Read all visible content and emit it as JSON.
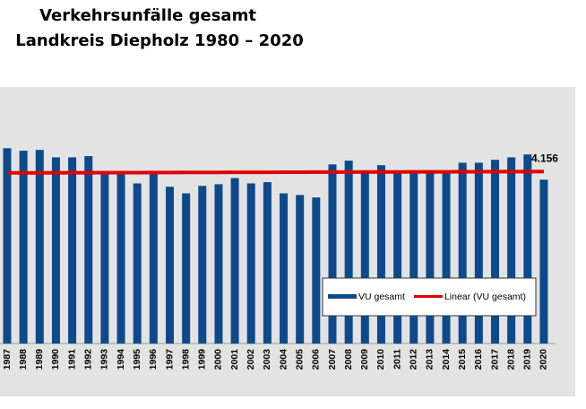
{
  "chart_data": {
    "type": "bar",
    "title": [
      "Verkehrsunfälle gesamt",
      "Landkreis Diepholz 1980 – 2020"
    ],
    "categories": [
      "1987",
      "1988",
      "1989",
      "1990",
      "1991",
      "1992",
      "1993",
      "1994",
      "1995",
      "1996",
      "1997",
      "1998",
      "1999",
      "2000",
      "2001",
      "2002",
      "2003",
      "2004",
      "2005",
      "2006",
      "2007",
      "2008",
      "2009",
      "2010",
      "2011",
      "2012",
      "2013",
      "2014",
      "2015",
      "2016",
      "2017",
      "2018",
      "2019",
      "2020"
    ],
    "series": [
      {
        "name": "VU gesamt",
        "mark": "bar",
        "color": "#0d4a8c",
        "values": [
          4720,
          4660,
          4680,
          4500,
          4500,
          4530,
          4160,
          4130,
          3870,
          4130,
          3790,
          3630,
          3810,
          3850,
          4000,
          3870,
          3900,
          3630,
          3590,
          3530,
          4330,
          4420,
          4160,
          4310,
          4160,
          4160,
          4160,
          4160,
          4370,
          4370,
          4440,
          4500,
          4570,
          3960
        ]
      },
      {
        "name": "Linear (VU gesamt)",
        "mark": "line",
        "color": "#e00000",
        "values": [
          4123,
          4124,
          4125,
          4126,
          4127,
          4128,
          4129,
          4130,
          4131,
          4132,
          4133,
          4134,
          4135,
          4136,
          4137,
          4138,
          4139,
          4140,
          4141,
          4142,
          4143,
          4144,
          4145,
          4146,
          4147,
          4148,
          4149,
          4150,
          4151,
          4152,
          4153,
          4154,
          4155,
          4156
        ],
        "value_labels": [
          null,
          null,
          null,
          null,
          null,
          null,
          null,
          null,
          null,
          null,
          null,
          null,
          null,
          null,
          null,
          null,
          null,
          null,
          null,
          null,
          null,
          null,
          null,
          null,
          null,
          null,
          null,
          null,
          null,
          null,
          null,
          null,
          null,
          "4.156"
        ]
      }
    ],
    "ylim": [
      0,
      6200
    ]
  }
}
